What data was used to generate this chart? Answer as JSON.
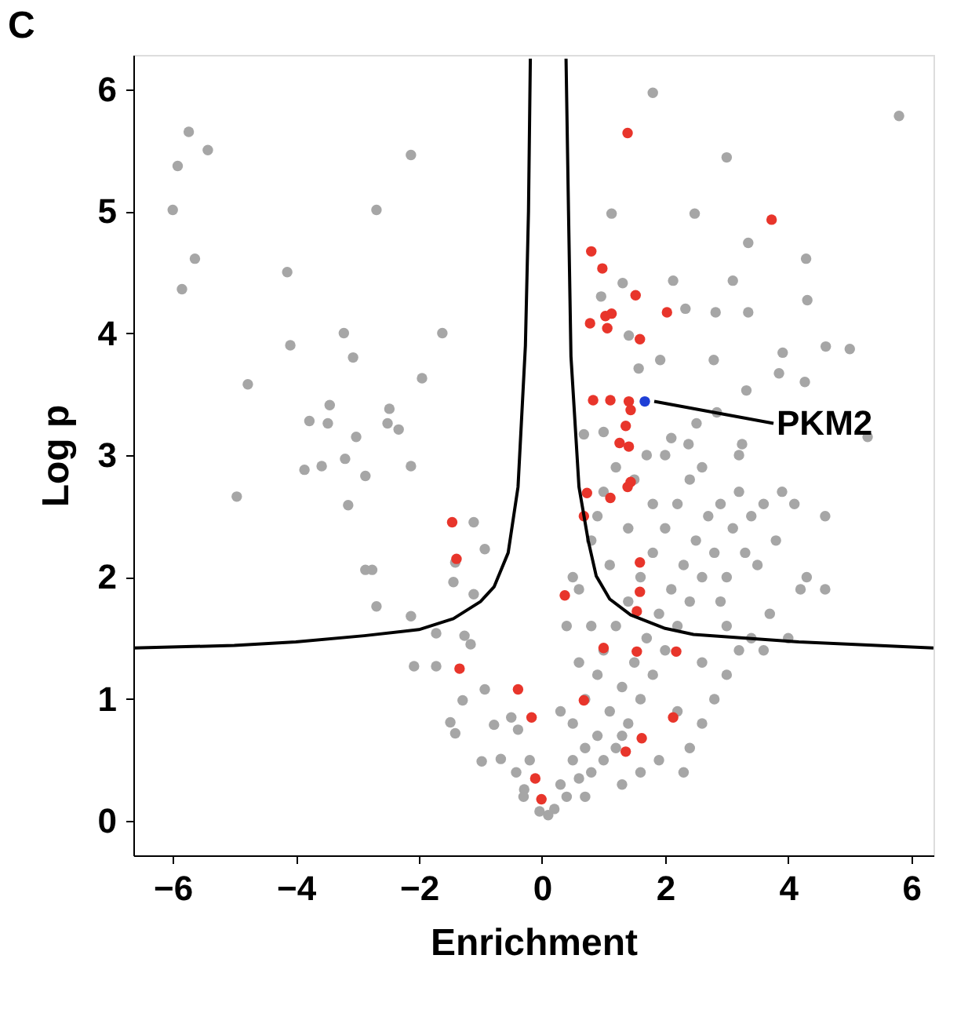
{
  "chart_data": {
    "type": "scatter",
    "title": "C",
    "xlabel": "Enrichment",
    "ylabel": "Log p",
    "xlim": [
      -6.64,
      6.36
    ],
    "ylim": [
      -0.28,
      6.28
    ],
    "xticks": [
      -6,
      -4,
      -2,
      0,
      2,
      4,
      6
    ],
    "yticks": [
      0,
      1,
      2,
      3,
      4,
      5,
      6
    ],
    "grid": false,
    "marker": "circle",
    "annotations": [
      {
        "text": "PKM2",
        "x": 1.67,
        "y": 3.44
      }
    ],
    "series": [
      {
        "color": "#a6a6a6",
        "x": [
          -5.74,
          -5.43,
          -5.92,
          -6.0,
          -5.64,
          -5.85,
          -2.13,
          -2.69,
          -4.14,
          -4.09,
          -3.22,
          -3.07,
          -4.78,
          -1.62,
          -1.95,
          -3.45,
          -3.78,
          -3.48,
          -3.02,
          -2.48,
          -2.51,
          -2.33,
          -3.2,
          -3.86,
          -3.58,
          -2.87,
          -2.13,
          -3.15,
          -4.96,
          -2.87,
          -1.11,
          -0.93,
          -1.41,
          -2.76,
          -1.44,
          -1.11,
          -2.69,
          -2.13,
          -1.72,
          -2.08,
          -1.72,
          -1.26,
          -1.16,
          -1.29,
          -0.93,
          -0.78,
          -1.49,
          -1.41,
          -0.98,
          -0.67,
          -0.42,
          -0.29,
          -0.04,
          -0.39,
          -0.5,
          1.8,
          5.8,
          3.0,
          1.13,
          2.48,
          3.35,
          4.29,
          2.13,
          3.1,
          4.31,
          1.31,
          0.96,
          2.33,
          3.35,
          2.82,
          1.41,
          1.92,
          1.57,
          4.61,
          5.0,
          3.91,
          3.85,
          2.79,
          3.32,
          2.84,
          4.27,
          5.29,
          2.51,
          0.68,
          1.0,
          2.1,
          2.38,
          3.25,
          0.2,
          0.3,
          0.4,
          0.5,
          0.6,
          0.7,
          0.5,
          0.8,
          0.9,
          0.7,
          1.0,
          1.1,
          1.2,
          0.9,
          1.3,
          1.0,
          1.4,
          1.5,
          1.2,
          1.6,
          1.7,
          1.4,
          1.8,
          1.9,
          1.6,
          2.0,
          2.1,
          1.8,
          2.2,
          2.3,
          2.0,
          2.4,
          2.5,
          2.2,
          2.6,
          2.7,
          2.4,
          2.8,
          2.9,
          3.0,
          3.1,
          3.2,
          3.3,
          3.4,
          3.5,
          3.6,
          3.8,
          4.1,
          4.3,
          4.2,
          4.6,
          4.6,
          3.0,
          3.2,
          2.6,
          2.8,
          3.0,
          3.4,
          3.7,
          2.2,
          2.4,
          1.9,
          1.6,
          1.3,
          2.6,
          0.4,
          0.6,
          0.8,
          0.5,
          1.0,
          1.2,
          0.9,
          1.5,
          1.7,
          0.6,
          0.3,
          -0.2,
          -0.3,
          0.1,
          1.8,
          2.0,
          2.6,
          1.4,
          1.1,
          0.8,
          2.9,
          3.6,
          4.0,
          1.3,
          0.7,
          3.2,
          3.9,
          2.3
        ],
        "values": [
          5.65,
          5.5,
          5.37,
          5.01,
          4.61,
          4.36,
          5.46,
          5.01,
          4.5,
          3.9,
          4.0,
          3.8,
          3.58,
          4.0,
          3.63,
          3.41,
          3.28,
          3.26,
          3.15,
          3.38,
          3.26,
          3.21,
          2.97,
          2.88,
          2.91,
          2.83,
          2.91,
          2.59,
          2.66,
          2.06,
          2.45,
          2.23,
          2.12,
          2.06,
          1.96,
          1.86,
          1.76,
          1.68,
          1.54,
          1.27,
          1.27,
          1.52,
          1.45,
          0.99,
          1.08,
          0.79,
          0.81,
          0.72,
          0.49,
          0.51,
          0.4,
          0.26,
          0.08,
          0.75,
          0.85,
          5.97,
          5.78,
          5.44,
          4.98,
          4.98,
          4.74,
          4.61,
          4.43,
          4.43,
          4.27,
          4.41,
          4.3,
          4.2,
          4.17,
          4.17,
          3.98,
          3.78,
          3.71,
          3.89,
          3.87,
          3.84,
          3.67,
          3.78,
          3.53,
          3.35,
          3.6,
          3.15,
          3.26,
          3.17,
          3.19,
          3.14,
          3.09,
          3.09,
          0.1,
          0.3,
          0.2,
          0.5,
          0.35,
          0.6,
          0.8,
          0.4,
          0.7,
          1.0,
          0.5,
          0.9,
          0.6,
          1.2,
          1.1,
          1.4,
          0.8,
          1.3,
          1.6,
          1.0,
          1.5,
          1.8,
          1.2,
          1.7,
          2.0,
          1.4,
          1.9,
          2.2,
          1.6,
          2.1,
          2.4,
          1.8,
          2.3,
          2.6,
          2.0,
          2.5,
          2.8,
          2.2,
          2.6,
          2.0,
          2.4,
          2.7,
          2.2,
          2.5,
          2.1,
          2.6,
          2.3,
          2.6,
          2.0,
          1.9,
          2.5,
          1.9,
          1.6,
          1.4,
          1.3,
          1.0,
          1.2,
          1.5,
          1.7,
          0.9,
          0.6,
          0.5,
          0.4,
          0.3,
          0.8,
          1.6,
          1.9,
          2.3,
          2.0,
          2.7,
          2.9,
          2.5,
          2.8,
          3.0,
          1.3,
          0.9,
          0.5,
          0.2,
          0.05,
          2.6,
          3.0,
          2.9,
          2.4,
          2.1,
          1.6,
          1.8,
          1.4,
          1.5,
          0.7,
          0.2,
          3.0,
          2.7,
          0.4
        ]
      },
      {
        "color": "#e8352b",
        "x": [
          -1.46,
          -1.39,
          -1.34,
          -0.39,
          -0.17,
          -0.11,
          -0.01,
          1.39,
          3.73,
          0.8,
          0.98,
          1.52,
          2.03,
          0.78,
          1.03,
          1.13,
          1.06,
          1.59,
          0.83,
          1.11,
          1.41,
          1.44,
          1.36,
          1.26,
          1.41,
          1.44,
          1.39,
          0.73,
          1.11,
          0.68,
          1.59,
          0.37,
          1.59,
          1.54,
          1.0,
          1.54,
          2.18,
          0.68,
          2.13,
          1.62,
          1.36
        ],
        "values": [
          2.45,
          2.15,
          1.25,
          1.08,
          0.85,
          0.35,
          0.18,
          5.64,
          4.93,
          4.67,
          4.53,
          4.31,
          4.17,
          4.08,
          4.14,
          4.16,
          4.04,
          3.95,
          3.45,
          3.45,
          3.44,
          3.37,
          3.24,
          3.1,
          3.07,
          2.78,
          2.74,
          2.69,
          2.65,
          2.5,
          2.12,
          1.85,
          1.88,
          1.72,
          1.42,
          1.39,
          1.39,
          0.99,
          0.85,
          0.68,
          0.57
        ]
      },
      {
        "color": "#1f3fd6",
        "x": [
          1.67
        ],
        "values": [
          3.44
        ]
      },
      {
        "type": "line",
        "color": "#000000",
        "line_style": "solid",
        "marker": "none",
        "x": [
          -6.64,
          -5,
          -4,
          -2.89,
          -2,
          -1.44,
          -1.0,
          -0.78,
          -0.55,
          -0.39,
          -0.27,
          -0.22,
          -0.19
        ],
        "values": [
          1.42,
          1.44,
          1.47,
          1.52,
          1.57,
          1.66,
          1.8,
          1.92,
          2.2,
          2.74,
          3.9,
          5.0,
          6.25
        ]
      },
      {
        "type": "line",
        "color": "#000000",
        "line_style": "solid",
        "marker": "none",
        "x": [
          0.39,
          0.43,
          0.47,
          0.6,
          0.75,
          0.88,
          1.1,
          1.44,
          2.0,
          2.46,
          4.17,
          6.36
        ],
        "values": [
          6.25,
          5.0,
          3.81,
          2.74,
          2.3,
          2.01,
          1.82,
          1.69,
          1.58,
          1.53,
          1.47,
          1.42
        ]
      }
    ]
  }
}
